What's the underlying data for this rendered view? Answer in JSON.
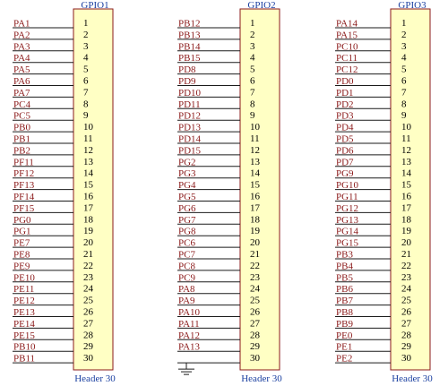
{
  "headers": [
    {
      "title": "GPIO1",
      "footer": "Header 30",
      "has_ground": false,
      "pins": [
        {
          "num": "1",
          "signal": "PA1"
        },
        {
          "num": "2",
          "signal": "PA2"
        },
        {
          "num": "3",
          "signal": "PA3"
        },
        {
          "num": "4",
          "signal": "PA4"
        },
        {
          "num": "5",
          "signal": "PA5"
        },
        {
          "num": "6",
          "signal": "PA6"
        },
        {
          "num": "7",
          "signal": "PA7"
        },
        {
          "num": "8",
          "signal": "PC4"
        },
        {
          "num": "9",
          "signal": "PC5"
        },
        {
          "num": "10",
          "signal": "PB0"
        },
        {
          "num": "11",
          "signal": "PB1"
        },
        {
          "num": "12",
          "signal": "PB2"
        },
        {
          "num": "13",
          "signal": "PF11"
        },
        {
          "num": "14",
          "signal": "PF12"
        },
        {
          "num": "15",
          "signal": "PF13"
        },
        {
          "num": "16",
          "signal": "PF14"
        },
        {
          "num": "17",
          "signal": "PF15"
        },
        {
          "num": "18",
          "signal": "PG0"
        },
        {
          "num": "19",
          "signal": "PG1"
        },
        {
          "num": "20",
          "signal": "PE7"
        },
        {
          "num": "21",
          "signal": "PE8"
        },
        {
          "num": "22",
          "signal": "PE9"
        },
        {
          "num": "23",
          "signal": "PE10"
        },
        {
          "num": "24",
          "signal": "PE11"
        },
        {
          "num": "25",
          "signal": "PE12"
        },
        {
          "num": "26",
          "signal": "PE13"
        },
        {
          "num": "27",
          "signal": "PE14"
        },
        {
          "num": "28",
          "signal": "PE15"
        },
        {
          "num": "29",
          "signal": "PB10"
        },
        {
          "num": "30",
          "signal": "PB11"
        }
      ]
    },
    {
      "title": "GPIO2",
      "footer": "Header 30",
      "has_ground": true,
      "pins": [
        {
          "num": "1",
          "signal": "PB12"
        },
        {
          "num": "2",
          "signal": "PB13"
        },
        {
          "num": "3",
          "signal": "PB14"
        },
        {
          "num": "4",
          "signal": "PB15"
        },
        {
          "num": "5",
          "signal": "PD8"
        },
        {
          "num": "6",
          "signal": "PD9"
        },
        {
          "num": "7",
          "signal": "PD10"
        },
        {
          "num": "8",
          "signal": "PD11"
        },
        {
          "num": "9",
          "signal": "PD12"
        },
        {
          "num": "10",
          "signal": "PD13"
        },
        {
          "num": "11",
          "signal": "PD14"
        },
        {
          "num": "12",
          "signal": "PD15"
        },
        {
          "num": "13",
          "signal": "PG2"
        },
        {
          "num": "14",
          "signal": "PG3"
        },
        {
          "num": "15",
          "signal": "PG4"
        },
        {
          "num": "16",
          "signal": "PG5"
        },
        {
          "num": "17",
          "signal": "PG6"
        },
        {
          "num": "18",
          "signal": "PG7"
        },
        {
          "num": "19",
          "signal": "PG8"
        },
        {
          "num": "20",
          "signal": "PC6"
        },
        {
          "num": "21",
          "signal": "PC7"
        },
        {
          "num": "22",
          "signal": "PC8"
        },
        {
          "num": "23",
          "signal": "PC9"
        },
        {
          "num": "24",
          "signal": "PA8"
        },
        {
          "num": "25",
          "signal": "PA9"
        },
        {
          "num": "26",
          "signal": "PA10"
        },
        {
          "num": "27",
          "signal": "PA11"
        },
        {
          "num": "28",
          "signal": "PA12"
        },
        {
          "num": "29",
          "signal": "PA13"
        },
        {
          "num": "30",
          "signal": ""
        }
      ]
    },
    {
      "title": "GPIO3",
      "footer": "Header 30",
      "has_ground": false,
      "pins": [
        {
          "num": "1",
          "signal": "PA14"
        },
        {
          "num": "2",
          "signal": "PA15"
        },
        {
          "num": "3",
          "signal": "PC10"
        },
        {
          "num": "4",
          "signal": "PC11"
        },
        {
          "num": "5",
          "signal": "PC12"
        },
        {
          "num": "6",
          "signal": "PD0"
        },
        {
          "num": "7",
          "signal": "PD1"
        },
        {
          "num": "8",
          "signal": "PD2"
        },
        {
          "num": "9",
          "signal": "PD3"
        },
        {
          "num": "10",
          "signal": "PD4"
        },
        {
          "num": "11",
          "signal": "PD5"
        },
        {
          "num": "12",
          "signal": "PD6"
        },
        {
          "num": "13",
          "signal": "PD7"
        },
        {
          "num": "14",
          "signal": "PG9"
        },
        {
          "num": "15",
          "signal": "PG10"
        },
        {
          "num": "16",
          "signal": "PG11"
        },
        {
          "num": "17",
          "signal": "PG12"
        },
        {
          "num": "18",
          "signal": "PG13"
        },
        {
          "num": "19",
          "signal": "PG14"
        },
        {
          "num": "20",
          "signal": "PG15"
        },
        {
          "num": "21",
          "signal": "PB3"
        },
        {
          "num": "22",
          "signal": "PB4"
        },
        {
          "num": "23",
          "signal": "PB5"
        },
        {
          "num": "24",
          "signal": "PB6"
        },
        {
          "num": "25",
          "signal": "PB7"
        },
        {
          "num": "26",
          "signal": "PB8"
        },
        {
          "num": "27",
          "signal": "PB9"
        },
        {
          "num": "28",
          "signal": "PE0"
        },
        {
          "num": "29",
          "signal": "PE1"
        },
        {
          "num": "30",
          "signal": "PE2"
        }
      ]
    }
  ],
  "colors": {
    "body_fill": "#ffffc4",
    "body_stroke": "#8b1a1a",
    "wire": "#1a1a1a",
    "signal_text": "#8b1a1a",
    "pin_number": "#000000",
    "title_text": "#1a3fa0"
  }
}
